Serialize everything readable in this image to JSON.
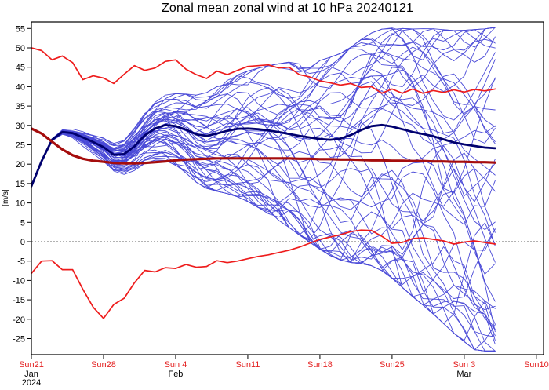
{
  "title": "Zonal mean zonal wind at 10 hPa 20240121",
  "colors": {
    "ensemble_member": "#2323cf",
    "ensemble_mean": "#00006e",
    "climate_thin_red": "#ee1c1c",
    "climate_mean_red": "#a50d0d",
    "x_label_red": "#e42222",
    "axis": "#000000",
    "zero_line": "#333333",
    "background": "#ffffff"
  },
  "y_axis": {
    "label": "[m/s]",
    "tick_labels": [
      55,
      50,
      45,
      40,
      35,
      30,
      25,
      20,
      15,
      10,
      5,
      0,
      -5,
      -10,
      -15,
      -20,
      -25
    ],
    "min_tick": -25,
    "max_tick": 55,
    "step": 5
  },
  "x_axis": {
    "week_ticks": [
      {
        "label": "Sun21",
        "day": 0
      },
      {
        "label": "Sun28",
        "day": 7
      },
      {
        "label": "Sun 4",
        "day": 14
      },
      {
        "label": "Sun11",
        "day": 21
      },
      {
        "label": "Sun18",
        "day": 28
      },
      {
        "label": "Sun25",
        "day": 35
      },
      {
        "label": "Sun 3",
        "day": 42
      },
      {
        "label": "Sun10",
        "day": 49
      }
    ],
    "month_labels": [
      {
        "day": 0,
        "lines": [
          "Jan",
          "2024"
        ]
      },
      {
        "day": 14,
        "lines": [
          "Feb"
        ]
      },
      {
        "day": 42,
        "lines": [
          "Mar"
        ]
      }
    ]
  },
  "chart_data": {
    "type": "line",
    "title": "Zonal mean zonal wind at 10 hPa 20240121",
    "xlabel": "",
    "ylabel": "[m/s]",
    "ylim": [
      -29,
      56.8
    ],
    "xlim_days": [
      0,
      49.7
    ],
    "grid": false,
    "zero_line_dashed": true,
    "forecast_length_days": 45,
    "x_is_daily_index_from": "Sun21 Jan 2024",
    "series": [
      {
        "name": "climatological-max",
        "color": "#ee1c1c",
        "width": 1.7,
        "values": [
          50,
          49.3,
          46.9,
          47.9,
          46.2,
          41.8,
          42.8,
          42.2,
          40.8,
          43.2,
          45.4,
          44.2,
          44.8,
          46.5,
          46.9,
          44.5,
          43.1,
          42.1,
          44,
          43.1,
          44.2,
          45.2,
          45.4,
          45.6,
          44.8,
          45,
          43.1,
          42.5,
          41.5,
          41,
          40.4,
          40.8,
          39.8,
          40,
          38.3,
          39.4,
          38.3,
          39.4,
          38.3,
          39,
          38.5,
          39.2,
          38.6,
          39.3,
          38.9,
          39.4
        ]
      },
      {
        "name": "climatological-mean",
        "color": "#a50d0d",
        "width": 3.2,
        "values": [
          29.2,
          27.9,
          25.8,
          23.8,
          22.3,
          21.4,
          20.9,
          20.6,
          20.3,
          20.2,
          20.2,
          20.3,
          20.5,
          20.7,
          21,
          21.2,
          21.3,
          21.4,
          21.5,
          21.5,
          21.5,
          21.5,
          21.5,
          21.5,
          21.5,
          21.5,
          21.4,
          21.4,
          21.3,
          21.3,
          21.2,
          21.2,
          21.1,
          21,
          21,
          20.9,
          20.9,
          20.8,
          20.8,
          20.7,
          20.7,
          20.6,
          20.6,
          20.5,
          20.5,
          20.4
        ]
      },
      {
        "name": "climatological-min",
        "color": "#ee1c1c",
        "width": 1.7,
        "values": [
          -8.2,
          -5,
          -4.9,
          -7.2,
          -7.2,
          -12.3,
          -16.9,
          -19.8,
          -16.2,
          -14.6,
          -10.6,
          -7.4,
          -7.8,
          -6.7,
          -6.9,
          -5.9,
          -6.6,
          -6.4,
          -4.9,
          -5.4,
          -5,
          -4.4,
          -3.8,
          -3.4,
          -2.8,
          -2.2,
          -1.4,
          -0.4,
          0.6,
          1.2,
          1.8,
          2.6,
          3,
          2.9,
          1.4,
          -0.4,
          -0.2,
          0.8,
          1,
          0.6,
          0.2,
          -0.6,
          -0.1,
          0.2,
          -0.2,
          -0.6
        ]
      },
      {
        "name": "ensemble-mean",
        "color": "#00006e",
        "width": 2.8,
        "values": [
          14.3,
          20.8,
          26.3,
          28.3,
          28,
          26.9,
          25.7,
          24.4,
          22.4,
          22.6,
          24.6,
          27.4,
          29.2,
          30.1,
          29.8,
          28.9,
          27.7,
          27.3,
          27.9,
          28.6,
          29.1,
          29.2,
          29,
          28.7,
          28.3,
          27.8,
          27.3,
          26.9,
          26.5,
          26.3,
          26.6,
          27.5,
          28.8,
          29.8,
          30.1,
          29.7,
          29,
          28.3,
          27.8,
          27.2,
          26.4,
          25.6,
          25.1,
          24.7,
          24.3,
          24.1
        ]
      }
    ],
    "ensemble": {
      "count": 50,
      "color": "#2323cf",
      "width": 0.9,
      "opacity": 0.82,
      "seed": 20240121,
      "start_value": 14.3,
      "envelope_note": "members fan out from common analysis; max ~54 near Mar 3, min ~-27 at Mar 6",
      "spread_up": [
        0,
        0.4,
        0.7,
        1,
        1.4,
        1.8,
        2.3,
        2.9,
        3.4,
        4,
        4.7,
        5.4,
        6.1,
        6.7,
        7.3,
        8,
        8.8,
        9.7,
        10.5,
        11.3,
        12.1,
        12.9,
        13.7,
        14.5,
        15.3,
        16.1,
        16.7,
        17.3,
        17.9,
        18.5,
        19.1,
        19.7,
        20.3,
        20.9,
        21.5,
        22.1,
        22.6,
        23.1,
        23.6,
        24.1,
        24.6,
        25.1,
        25.6,
        26.1,
        26.6,
        27.1
      ],
      "spread_dn": [
        0,
        0.4,
        0.7,
        1,
        1.4,
        1.9,
        2.5,
        3.1,
        3.7,
        4.4,
        5.2,
        6,
        6.8,
        7.6,
        8.4,
        9.3,
        10.3,
        11.3,
        12.4,
        13.5,
        14.6,
        15.7,
        16.8,
        17.9,
        19,
        20.1,
        21.3,
        22.5,
        23.7,
        24.9,
        26.1,
        27.4,
        28.7,
        30,
        31.3,
        32.6,
        34,
        35.4,
        36.8,
        38.2,
        39.6,
        41,
        42.4,
        43.8,
        45.2,
        46.6
      ]
    }
  }
}
